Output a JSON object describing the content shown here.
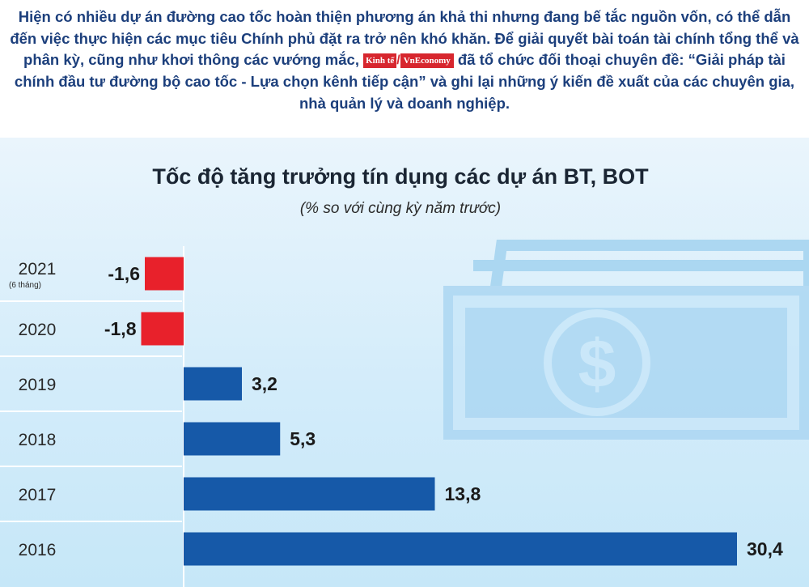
{
  "intro": {
    "text_before_logo": "Hiện có nhiều dự án đường cao tốc hoàn thiện phương án khả thi nhưng đang bế tắc nguồn vốn, có thể dẫn đến việc thực hiện các mục tiêu Chính phủ đặt ra trở nên khó khăn. Để giải quyết bài toán tài chính tổng thể và phân kỳ, cũng như khơi thông các vướng mắc,",
    "logo_kinhte": "Kinh tế",
    "logo_separator": "/",
    "logo_vneconomy": "VnEconomy",
    "text_after_logo": "đã tổ chức đối thoại chuyên đề: “Giải pháp tài chính đầu tư đường bộ cao tốc - Lựa chọn kênh tiếp cận” và ghi lại những ý kiến đề xuất của các chuyên gia, nhà quản lý và doanh nghiệp."
  },
  "chart_data": {
    "type": "bar",
    "orientation": "horizontal",
    "title": "Tốc độ tăng trưởng tín dụng các dự án BT, BOT",
    "subtitle": "(% so với cùng kỳ năm trước)",
    "categories": [
      "2021",
      "2020",
      "2019",
      "2018",
      "2017",
      "2016"
    ],
    "category_notes": [
      "(6 tháng)",
      "",
      "",
      "",
      "",
      ""
    ],
    "values": [
      -1.6,
      -1.8,
      3.2,
      5.3,
      13.8,
      30.4
    ],
    "value_labels": [
      "-1,6",
      "-1,8",
      "3,2",
      "5,3",
      "13,8",
      "30,4"
    ],
    "negative_color": "#e8212b",
    "positive_color": "#1659a8",
    "background_icon": "money-bill-icon"
  }
}
